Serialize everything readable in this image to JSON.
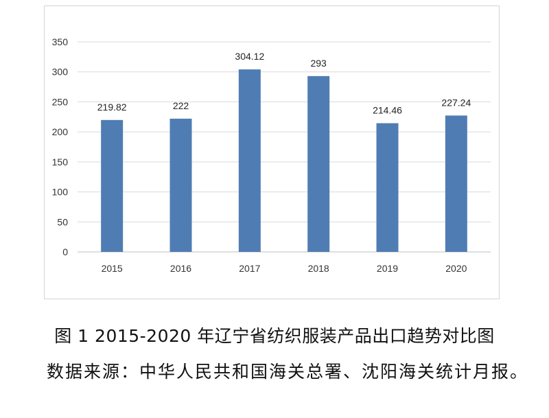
{
  "chart_data": {
    "type": "bar",
    "categories": [
      "2015",
      "2016",
      "2017",
      "2018",
      "2019",
      "2020"
    ],
    "values": [
      219.82,
      222,
      304.12,
      293,
      214.46,
      227.24
    ],
    "value_labels": [
      "219.82",
      "222",
      "304.12",
      "293",
      "214.46",
      "227.24"
    ],
    "ylim": [
      0,
      350
    ],
    "yticks": [
      0,
      50,
      100,
      150,
      200,
      250,
      300,
      350
    ],
    "grid": true,
    "bar_color": "#4f7db3",
    "title": "",
    "xlabel": "",
    "ylabel": ""
  },
  "caption": "图 1  2015-2020 年辽宁省纺织服装产品出口趋势对比图",
  "source_note": "数据来源：中华人民共和国海关总署、沈阳海关统计月报。"
}
